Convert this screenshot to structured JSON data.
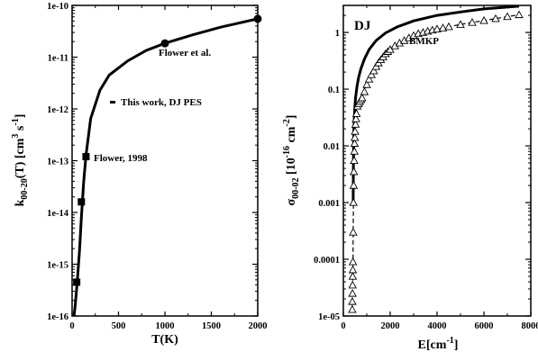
{
  "chart_data": [
    {
      "type": "line",
      "xlabel": "T(K)",
      "ylabel_main": "k",
      "ylabel_sub": "00-20",
      "ylabel_tail": "(T) [cm",
      "ylabel_sup1": "3",
      "ylabel_mid": " s",
      "ylabel_sup2": "-1",
      "ylabel_end": "]",
      "xlim": [
        0,
        2000
      ],
      "ylim": [
        1e-16,
        1e-10
      ],
      "yscale": "log",
      "x_ticks": [
        "0",
        "500",
        "1000",
        "1500",
        "2000"
      ],
      "y_ticks": [
        "1e-16",
        "1e-15",
        "1e-14",
        "1e-13",
        "1e-12",
        "1e-11",
        "1e-10"
      ],
      "series": [
        {
          "name": "This work, DJ PES",
          "style": "solid",
          "x": [
            20,
            30,
            45,
            60,
            80,
            100,
            125,
            150,
            200,
            300,
            400,
            600,
            800,
            1000,
            1300,
            1600,
            2000
          ],
          "y": [
            1e-16,
            1.4e-16,
            2.7e-16,
            6e-16,
            1.8e-15,
            8e-15,
            4e-14,
            1.3e-13,
            6.5e-13,
            2.3e-12,
            4.5e-12,
            8.5e-12,
            1.35e-11,
            1.85e-11,
            2.7e-11,
            3.8e-11,
            5.5e-11
          ]
        },
        {
          "name": "Flower, 1998",
          "marker": "square",
          "x": [
            50,
            100,
            150
          ],
          "y": [
            4.5e-16,
            1.6e-14,
            1.2e-13
          ]
        },
        {
          "name": "Flower et al.",
          "marker": "circle",
          "x": [
            1000,
            2000
          ],
          "y": [
            1.85e-11,
            5.5e-11
          ]
        }
      ],
      "annotations": [
        "Flower et al.",
        "This work, DJ PES",
        "Flower, 1998"
      ]
    },
    {
      "type": "line",
      "xlabel": "E[cm",
      "xlabel_sup": "-1",
      "xlabel_end": "]",
      "ylabel_main": "σ",
      "ylabel_sub": "00-02",
      "ylabel_tail": " [10",
      "ylabel_sup1": "-16",
      "ylabel_mid": " cm",
      "ylabel_sup2": "-2",
      "ylabel_end": "]",
      "xlim": [
        0,
        8000
      ],
      "ylim": [
        1e-05,
        3
      ],
      "yscale": "log",
      "x_ticks": [
        "0",
        "2000",
        "4000",
        "6000",
        "8000"
      ],
      "y_ticks": [
        "1e-05",
        "0.0001",
        "0.001",
        "0.01",
        "0.1",
        "1"
      ],
      "series": [
        {
          "name": "DJ",
          "style": "solid",
          "x": [
            420,
            430,
            450,
            480,
            520,
            580,
            650,
            750,
            900,
            1100,
            1400,
            1800,
            2300,
            3000,
            4000,
            5000,
            6000,
            7000,
            7500
          ],
          "y": [
            0.001,
            0.006,
            0.02,
            0.04,
            0.07,
            0.11,
            0.16,
            0.23,
            0.34,
            0.5,
            0.72,
            0.98,
            1.25,
            1.6,
            2.0,
            2.3,
            2.6,
            2.8,
            2.9
          ]
        },
        {
          "name": "BMKP",
          "style": "dashed",
          "marker": "triangle",
          "x": [
            380,
            385,
            390,
            395,
            400,
            405,
            410,
            420,
            430,
            440,
            450,
            460,
            470,
            480,
            490,
            500,
            520,
            540,
            560,
            600,
            650,
            700,
            750,
            800,
            900,
            1000,
            1100,
            1200,
            1300,
            1400,
            1500,
            1600,
            1700,
            1800,
            1900,
            2000,
            2200,
            2400,
            2600,
            2800,
            3000,
            3200,
            3400,
            3600,
            3800,
            4000,
            4250,
            4500,
            5000,
            5500,
            6000,
            6500,
            7000,
            7500
          ],
          "y": [
            1.3e-05,
            1.8e-05,
            2.5e-05,
            3.5e-05,
            5e-05,
            6.5e-05,
            9e-05,
            0.0003,
            0.001,
            0.002,
            0.0035,
            0.0055,
            0.008,
            0.011,
            0.014,
            0.018,
            0.024,
            0.03,
            0.037,
            0.05,
            0.055,
            0.06,
            0.065,
            0.07,
            0.09,
            0.12,
            0.15,
            0.18,
            0.21,
            0.25,
            0.29,
            0.33,
            0.37,
            0.42,
            0.46,
            0.5,
            0.58,
            0.65,
            0.72,
            0.8,
            0.88,
            0.95,
            1.0,
            1.05,
            1.1,
            1.15,
            1.2,
            1.26,
            1.38,
            1.5,
            1.62,
            1.75,
            1.9,
            2.05
          ]
        }
      ],
      "annotations": [
        "DJ",
        "BMKP"
      ]
    }
  ]
}
